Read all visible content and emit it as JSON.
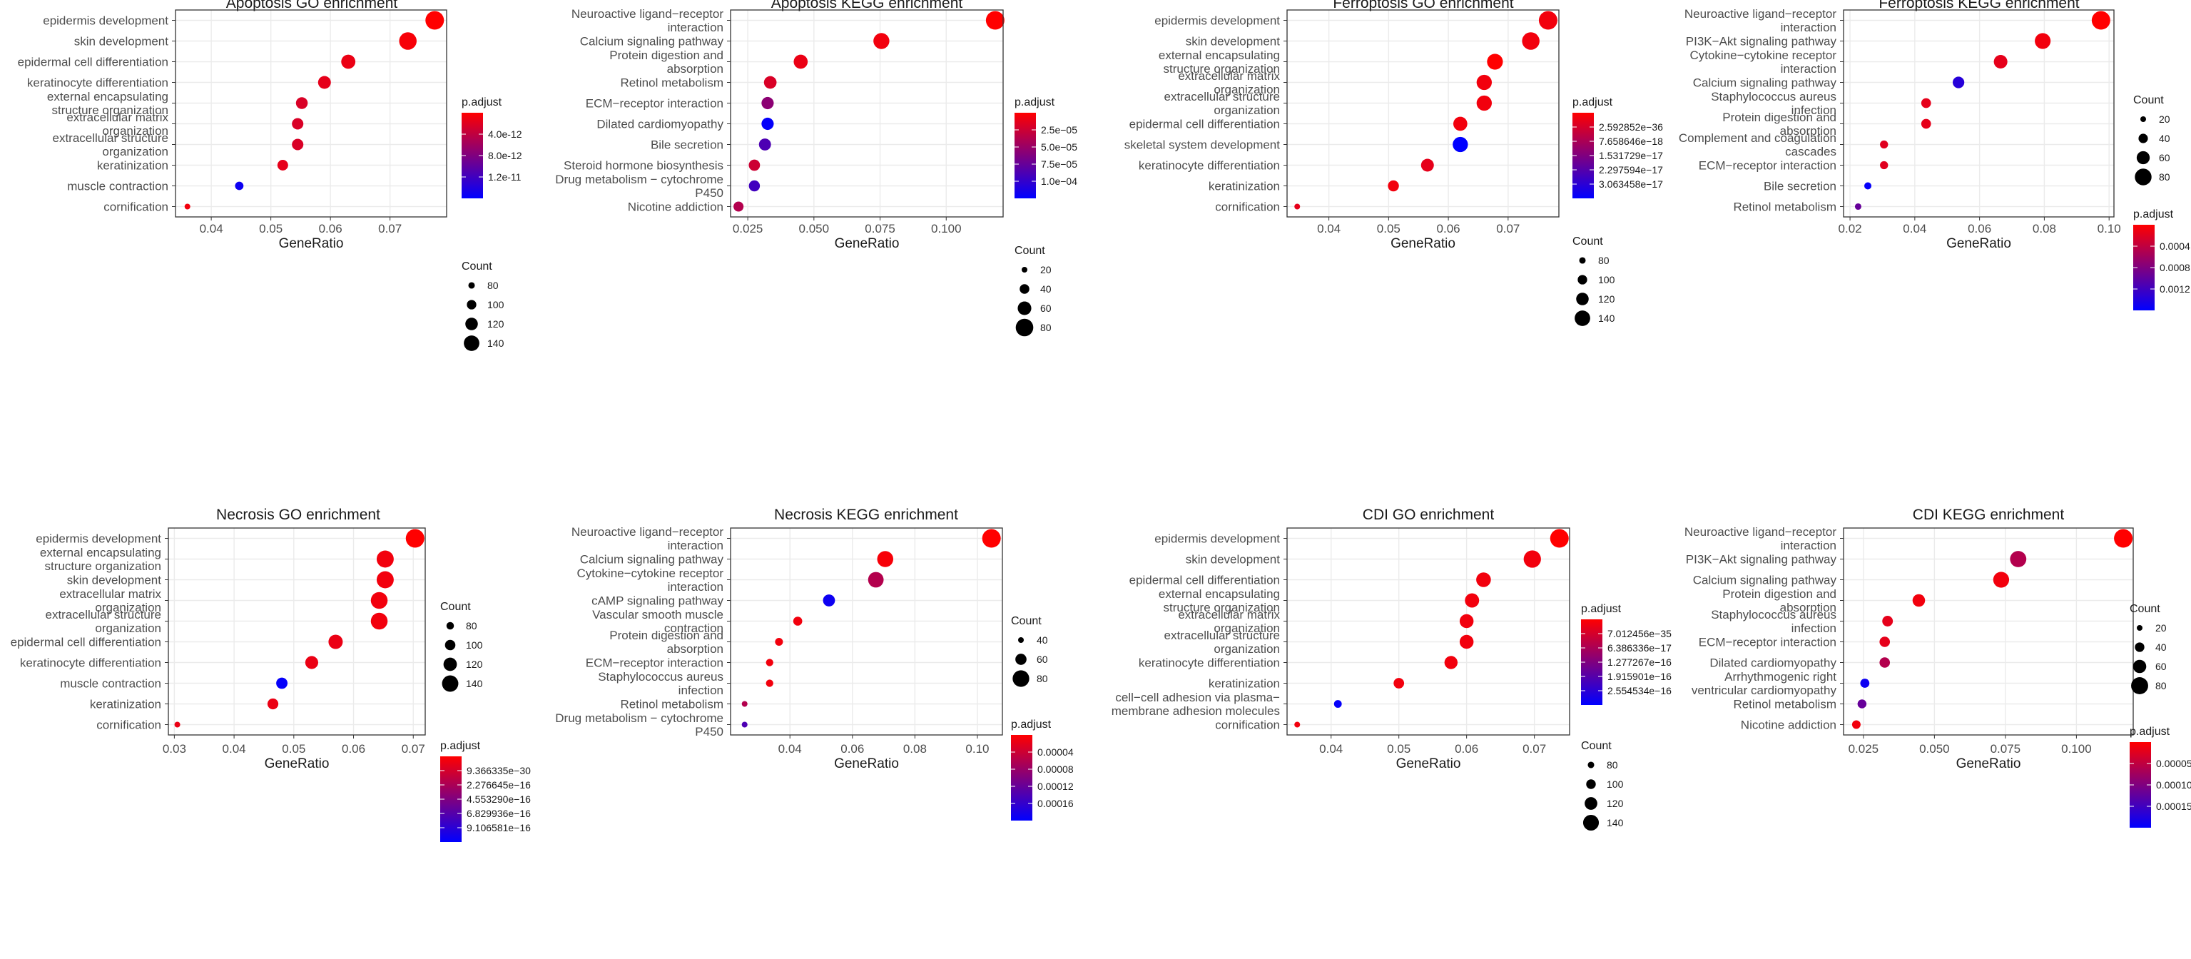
{
  "palette": {
    "low": "#ff0000",
    "high": "#0000ff",
    "panel_border": "#333333",
    "grid": "#ebebeb"
  },
  "chart_data": [
    {
      "type": "scatter",
      "title": "Apoptosis GO enrichment",
      "xlabel": "GeneRatio",
      "xlim": [
        0.034,
        0.0795
      ],
      "xticks": [
        0.04,
        0.05,
        0.06,
        0.07
      ],
      "xtick_labels": [
        "0.04",
        "0.05",
        "0.06",
        "0.07"
      ],
      "categories": [
        "epidermis development",
        "skin development",
        "epidermal cell differentiation",
        "keratinocyte differentiation",
        "external encapsulating\nstructure organization",
        "extracellular matrix\norganization",
        "extracellular structure\norganization",
        "keratinization",
        "muscle contraction",
        "cornification"
      ],
      "x": [
        0.0775,
        0.073,
        0.063,
        0.059,
        0.0552,
        0.0545,
        0.0545,
        0.052,
        0.0447,
        0.036
      ],
      "count": [
        160,
        153,
        131,
        122,
        115,
        113,
        113,
        108,
        93,
        75
      ],
      "color_t": [
        0.0,
        0.03,
        0.08,
        0.1,
        0.15,
        0.15,
        0.15,
        0.1,
        0.95,
        0.05
      ],
      "legends": [
        {
          "kind": "color",
          "title": "p.adjust",
          "ticks": [
            "4.0e-12",
            "8.0e-12",
            "1.2e-11"
          ]
        },
        {
          "kind": "size",
          "title": "Count",
          "labels": [
            "80",
            "100",
            "120",
            "140"
          ],
          "values": [
            80,
            100,
            120,
            140
          ]
        }
      ]
    },
    {
      "type": "scatter",
      "title": "Apoptosis KEGG enrichment",
      "xlabel": "GeneRatio",
      "xlim": [
        0.0185,
        0.1215
      ],
      "xticks": [
        0.025,
        0.05,
        0.075,
        0.1
      ],
      "xtick_labels": [
        "0.025",
        "0.050",
        "0.075",
        "0.100"
      ],
      "categories": [
        "Neuroactive ligand−receptor\ninteraction",
        "Calcium signaling pathway",
        "Protein digestion and\nabsorption",
        "Retinol metabolism",
        "ECM−receptor interaction",
        "Dilated cardiomyopathy",
        "Bile secretion",
        "Steroid hormone biosynthesis",
        "Drug metabolism − cytochrome\nP450",
        "Nicotine addiction"
      ],
      "x": [
        0.1185,
        0.0755,
        0.045,
        0.0335,
        0.0325,
        0.0325,
        0.0315,
        0.0275,
        0.0275,
        0.0215
      ],
      "count": [
        85,
        72,
        62,
        55,
        53,
        53,
        52,
        48,
        47,
        42
      ],
      "color_t": [
        0.0,
        0.05,
        0.08,
        0.15,
        0.45,
        0.98,
        0.7,
        0.2,
        0.75,
        0.3
      ],
      "legends": [
        {
          "kind": "color",
          "title": "p.adjust",
          "ticks": [
            "2.5e−05",
            "5.0e−05",
            "7.5e−05",
            "1.0e−04"
          ]
        },
        {
          "kind": "size",
          "title": "Count",
          "labels": [
            "20",
            "40",
            "60",
            "80"
          ],
          "values": [
            20,
            40,
            60,
            80
          ]
        }
      ]
    },
    {
      "type": "scatter",
      "title": "Ferroptosis GO enrichment",
      "xlabel": "GeneRatio",
      "xlim": [
        0.033,
        0.0785
      ],
      "xticks": [
        0.04,
        0.05,
        0.06,
        0.07
      ],
      "xtick_labels": [
        "0.04",
        "0.05",
        "0.06",
        "0.07"
      ],
      "categories": [
        "epidermis development",
        "skin development",
        "external encapsulating\nstructure organization",
        "extracellular matrix\norganization",
        "extracellular structure\norganization",
        "epidermal cell differentiation",
        "skeletal system development",
        "keratinocyte differentiation",
        "keratinization",
        "cornification"
      ],
      "x": [
        0.0767,
        0.0738,
        0.0678,
        0.066,
        0.066,
        0.062,
        0.062,
        0.0565,
        0.0508,
        0.0347
      ],
      "count": [
        160,
        153,
        142,
        138,
        138,
        130,
        138,
        122,
        110,
        75
      ],
      "color_t": [
        0.05,
        0.05,
        0.0,
        0.05,
        0.05,
        0.05,
        1.0,
        0.1,
        0.05,
        0.1
      ],
      "legends": [
        {
          "kind": "color",
          "title": "p.adjust",
          "ticks": [
            "2.592852e−36",
            "7.658646e−18",
            "1.531729e−17",
            "2.297594e−17",
            "3.063458e−17"
          ]
        },
        {
          "kind": "size",
          "title": "Count",
          "labels": [
            "80",
            "100",
            "120",
            "140"
          ],
          "values": [
            80,
            100,
            120,
            140
          ]
        }
      ]
    },
    {
      "type": "scatter",
      "title": "Ferroptosis KEGG enrichment",
      "xlabel": "GeneRatio",
      "xlim": [
        0.018,
        0.1015
      ],
      "xticks": [
        0.02,
        0.04,
        0.06,
        0.08,
        0.1
      ],
      "xtick_labels": [
        "0.02",
        "0.04",
        "0.06",
        "0.08",
        "0.10"
      ],
      "categories": [
        "Neuroactive ligand−receptor\ninteraction",
        "PI3K−Akt signaling pathway",
        "Cytokine−cytokine receptor\ninteraction",
        "Calcium signaling pathway",
        "Staphylococcus aureus\ninfection",
        "Protein digestion and\nabsorption",
        "Complement and coagulation\ncascades",
        "ECM−receptor interaction",
        "Bile secretion",
        "Retinol metabolism"
      ],
      "x": [
        0.0975,
        0.0795,
        0.0665,
        0.0535,
        0.0435,
        0.0435,
        0.0305,
        0.0305,
        0.0255,
        0.0225
      ],
      "count": [
        90,
        75,
        63,
        52,
        42,
        42,
        33,
        33,
        28,
        24
      ],
      "color_t": [
        0.0,
        0.05,
        0.1,
        0.85,
        0.1,
        0.1,
        0.12,
        0.12,
        0.98,
        0.6
      ],
      "legends": [
        {
          "kind": "size",
          "title": "Count",
          "labels": [
            "20",
            "40",
            "60",
            "80"
          ],
          "values": [
            20,
            40,
            60,
            80
          ]
        },
        {
          "kind": "color",
          "title": "p.adjust",
          "ticks": [
            "0.0004",
            "0.0008",
            "0.0012"
          ]
        }
      ]
    },
    {
      "type": "scatter",
      "title": "Necrosis GO enrichment",
      "xlabel": "GeneRatio",
      "xlim": [
        0.029,
        0.072
      ],
      "xticks": [
        0.03,
        0.04,
        0.05,
        0.06,
        0.07
      ],
      "xtick_labels": [
        "0.03",
        "0.04",
        "0.05",
        "0.06",
        "0.07"
      ],
      "categories": [
        "epidermis development",
        "external encapsulating\nstructure organization",
        "skin development",
        "extracellular matrix\norganization",
        "extracellular structure\norganization",
        "epidermal cell differentiation",
        "keratinocyte differentiation",
        "muscle contraction",
        "keratinization",
        "cornification"
      ],
      "x": [
        0.0703,
        0.0653,
        0.0653,
        0.0643,
        0.0643,
        0.057,
        0.053,
        0.048,
        0.0465,
        0.0305
      ],
      "count": [
        155,
        145,
        145,
        143,
        143,
        126,
        117,
        106,
        103,
        68
      ],
      "color_t": [
        0.0,
        0.05,
        0.05,
        0.05,
        0.05,
        0.08,
        0.08,
        0.98,
        0.08,
        0.08
      ],
      "legends": [
        {
          "kind": "size",
          "title": "Count",
          "labels": [
            "80",
            "100",
            "120",
            "140"
          ],
          "values": [
            80,
            100,
            120,
            140
          ]
        },
        {
          "kind": "color",
          "title": "p.adjust",
          "ticks": [
            "9.366335e−30",
            "2.276645e−16",
            "4.553290e−16",
            "6.829936e−16",
            "9.106581e−16"
          ]
        }
      ]
    },
    {
      "type": "scatter",
      "title": "Necrosis KEGG enrichment",
      "xlabel": "GeneRatio",
      "xlim": [
        0.021,
        0.108
      ],
      "xticks": [
        0.04,
        0.06,
        0.08,
        0.1
      ],
      "xtick_labels": [
        "0.04",
        "0.06",
        "0.08",
        "0.10"
      ],
      "categories": [
        "Neuroactive ligand−receptor\ninteraction",
        "Calcium signaling pathway",
        "Cytokine−cytokine receptor\ninteraction",
        "cAMP signaling pathway",
        "Vascular smooth muscle\ncontraction",
        "Protein digestion and\nabsorption",
        "ECM−receptor interaction",
        "Staphylococcus aureus\ninfection",
        "Retinol metabolism",
        "Drug metabolism − cytochrome\nP450"
      ],
      "x": [
        0.1045,
        0.0705,
        0.0675,
        0.0525,
        0.0425,
        0.0365,
        0.0335,
        0.0335,
        0.0255,
        0.0255
      ],
      "count": [
        87,
        78,
        76,
        63,
        52,
        48,
        46,
        46,
        40,
        40
      ],
      "color_t": [
        0.0,
        0.03,
        0.3,
        0.95,
        0.05,
        0.05,
        0.05,
        0.05,
        0.3,
        0.7
      ],
      "legends": [
        {
          "kind": "size",
          "title": "Count",
          "labels": [
            "40",
            "60",
            "80"
          ],
          "values": [
            40,
            60,
            80
          ]
        },
        {
          "kind": "color",
          "title": "p.adjust",
          "ticks": [
            "0.00004",
            "0.00008",
            "0.00012",
            "0.00016"
          ]
        }
      ]
    },
    {
      "type": "scatter",
      "title": "CDI  GO enrichment",
      "xlabel": "GeneRatio",
      "xlim": [
        0.0335,
        0.0752
      ],
      "xticks": [
        0.04,
        0.05,
        0.06,
        0.07
      ],
      "xtick_labels": [
        "0.04",
        "0.05",
        "0.06",
        "0.07"
      ],
      "categories": [
        "epidermis development",
        "skin development",
        "epidermal cell differentiation",
        "external encapsulating\nstructure organization",
        "extracellular matrix\norganization",
        "extracellular structure\norganization",
        "keratinocyte differentiation",
        "keratinization",
        "cell−cell adhesion via plasma−\nmembrane adhesion molecules",
        "cornification"
      ],
      "x": [
        0.0737,
        0.0697,
        0.0625,
        0.0608,
        0.06,
        0.06,
        0.0577,
        0.05,
        0.041,
        0.035
      ],
      "count": [
        158,
        150,
        133,
        130,
        128,
        128,
        123,
        106,
        88,
        75
      ],
      "color_t": [
        0.0,
        0.05,
        0.05,
        0.05,
        0.05,
        0.05,
        0.05,
        0.05,
        0.98,
        0.05
      ],
      "legends": [
        {
          "kind": "color",
          "title": "p.adjust",
          "ticks": [
            "7.012456e−35",
            "6.386336e−17",
            "1.277267e−16",
            "1.915901e−16",
            "2.554534e−16"
          ]
        },
        {
          "kind": "size",
          "title": "Count",
          "labels": [
            "80",
            "100",
            "120",
            "140"
          ],
          "values": [
            80,
            100,
            120,
            140
          ]
        }
      ]
    },
    {
      "type": "scatter",
      "title": "CDI  KEGG enrichment",
      "xlabel": "GeneRatio",
      "xlim": [
        0.018,
        0.12
      ],
      "xticks": [
        0.025,
        0.05,
        0.075,
        0.1
      ],
      "xtick_labels": [
        "0.025",
        "0.050",
        "0.075",
        "0.100"
      ],
      "categories": [
        "Neuroactive ligand−receptor\ninteraction",
        "PI3K−Akt signaling pathway",
        "Calcium signaling pathway",
        "Protein digestion and\nabsorption",
        "Staphylococcus aureus\ninfection",
        "ECM−receptor interaction",
        "Dilated cardiomyopathy",
        "Arrhythmogenic right\nventricular cardiomyopathy",
        "Retinol metabolism",
        "Nicotine addiction"
      ],
      "x": [
        0.1165,
        0.0795,
        0.0735,
        0.0445,
        0.0335,
        0.0325,
        0.0325,
        0.0255,
        0.0245,
        0.0225
      ],
      "count": [
        88,
        76,
        74,
        56,
        46,
        45,
        45,
        38,
        37,
        35
      ],
      "color_t": [
        0.0,
        0.3,
        0.05,
        0.05,
        0.1,
        0.1,
        0.3,
        0.95,
        0.6,
        0.05
      ],
      "legends": [
        {
          "kind": "size",
          "title": "Count",
          "labels": [
            "20",
            "40",
            "60",
            "80"
          ],
          "values": [
            20,
            40,
            60,
            80
          ]
        },
        {
          "kind": "color",
          "title": "p.adjust",
          "ticks": [
            "0.00005",
            "0.00010",
            "0.00015"
          ]
        }
      ]
    }
  ]
}
